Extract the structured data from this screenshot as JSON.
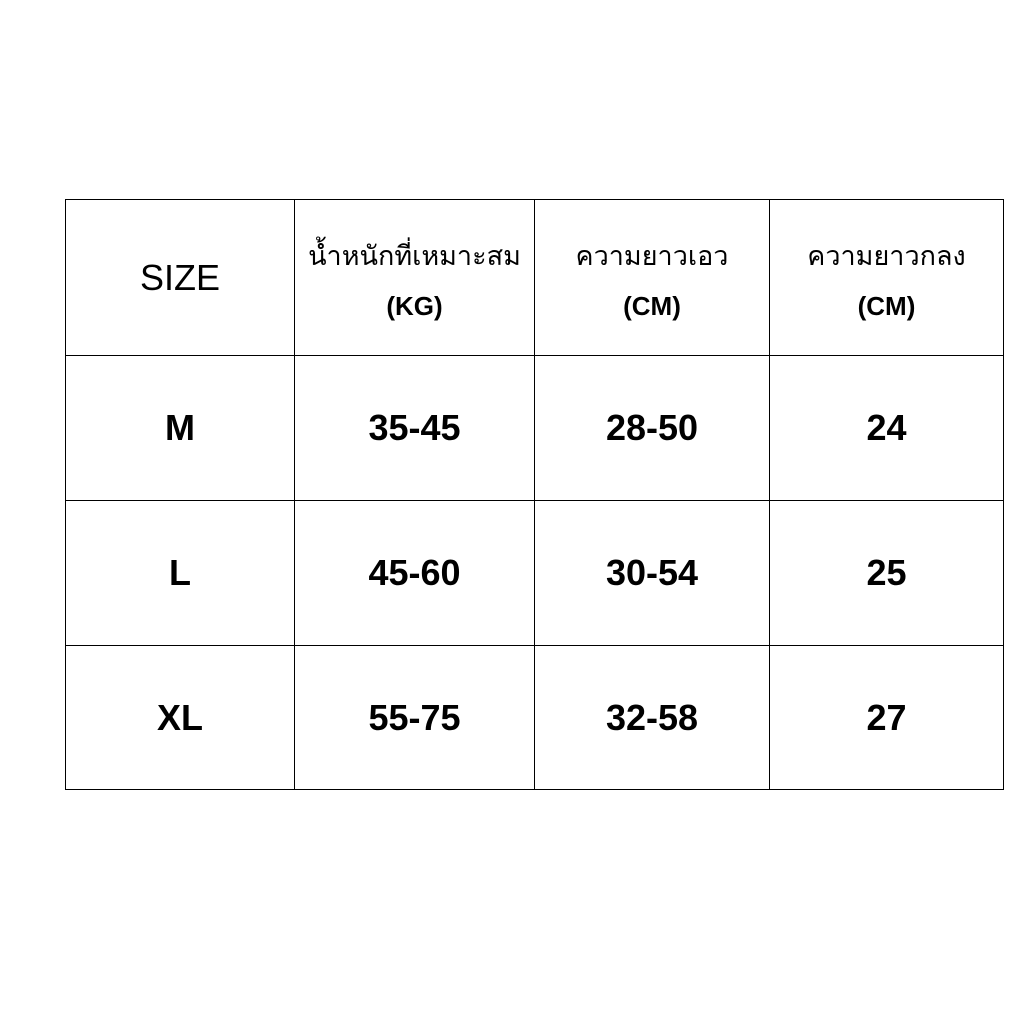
{
  "table": {
    "headers": [
      {
        "title": "SIZE"
      },
      {
        "title": "น้ำหนักที่เหมาะสม",
        "unit": "(KG)"
      },
      {
        "title": "ความยาวเอว",
        "unit": "(CM)"
      },
      {
        "title": "ความยาวกลง",
        "unit": "(CM)"
      }
    ],
    "rows": [
      [
        "M",
        "35-45",
        "28-50",
        "24"
      ],
      [
        "L",
        "45-60",
        "30-54",
        "25"
      ],
      [
        "XL",
        "55-75",
        "32-58",
        "27"
      ]
    ]
  }
}
